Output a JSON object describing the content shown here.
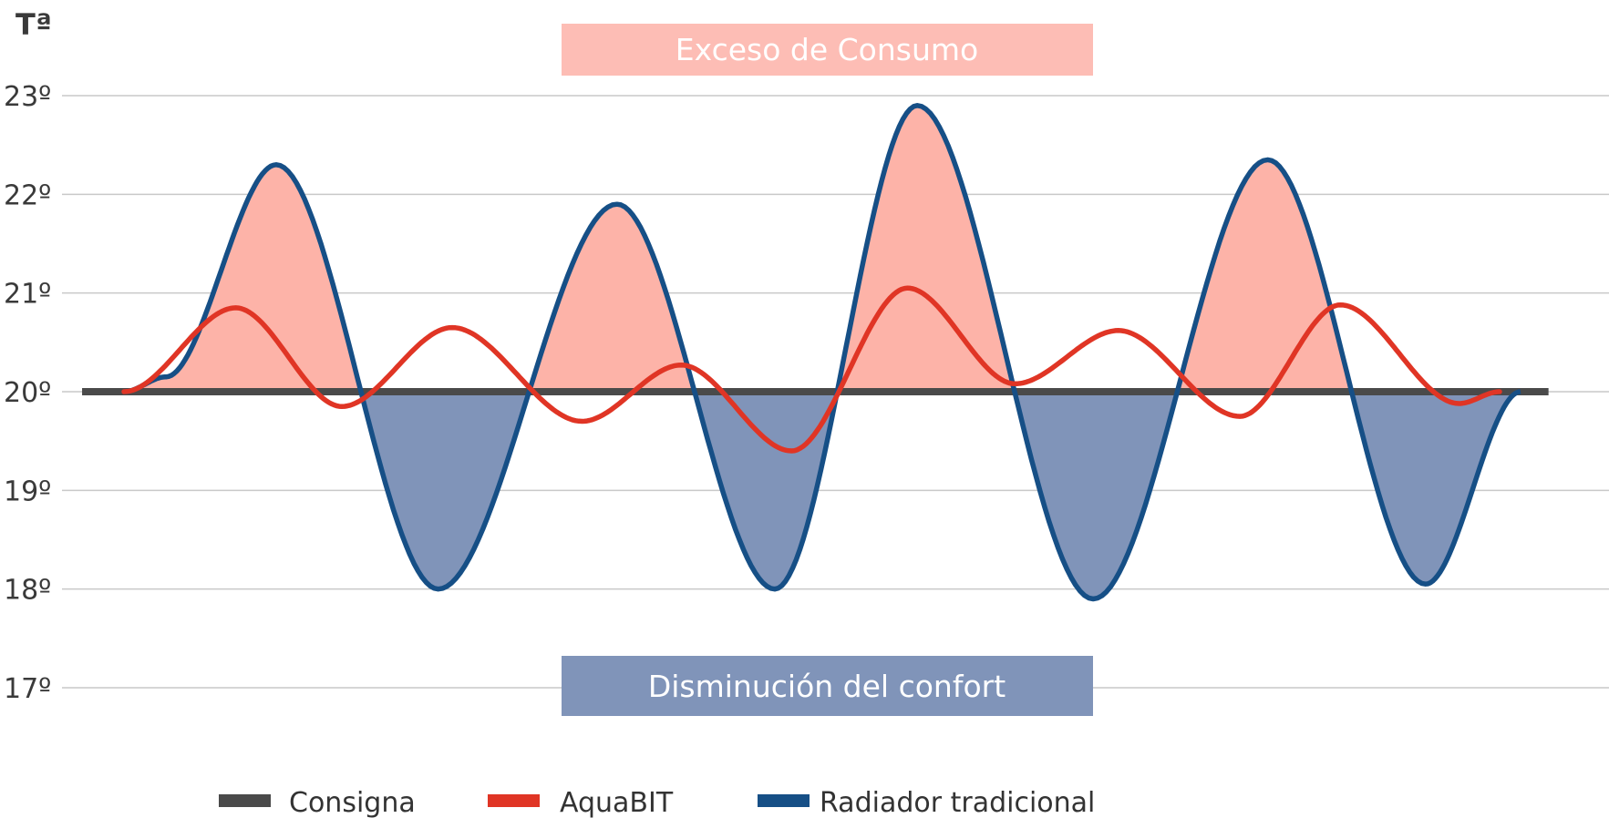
{
  "chart_data": {
    "type": "line",
    "title": "",
    "ylabel": "Tª",
    "xlabel": "",
    "ylim": [
      17,
      23
    ],
    "xlim": [
      0,
      100
    ],
    "yticks": [
      {
        "value": 23,
        "label": "23º"
      },
      {
        "value": 22,
        "label": "22º"
      },
      {
        "value": 21,
        "label": "21º"
      },
      {
        "value": 20,
        "label": "20º"
      },
      {
        "value": 19,
        "label": "19º"
      },
      {
        "value": 18,
        "label": "18º"
      },
      {
        "value": 17,
        "label": "17º"
      }
    ],
    "grid": true,
    "series": [
      {
        "name": "Consigna",
        "color": "#4a4a4a",
        "x": [
          -3,
          102
        ],
        "y": [
          20,
          20
        ]
      },
      {
        "name": "AquaBIT",
        "color": "#e03525",
        "x": [
          0,
          8,
          15.6,
          23.5,
          32.8,
          39.9,
          47.8,
          56.1,
          63.8,
          71.2,
          79.9,
          87.1,
          95.6,
          98.5
        ],
        "y": [
          20.0,
          20.85,
          19.85,
          20.65,
          19.7,
          20.27,
          19.4,
          21.05,
          20.08,
          20.62,
          19.75,
          20.88,
          19.88,
          20.0
        ]
      },
      {
        "name": "Radiador tradicional",
        "color": "#164f86",
        "x": [
          0,
          3,
          10.9,
          22.5,
          35.3,
          46.6,
          56.8,
          69.4,
          81.9,
          93.2,
          100
        ],
        "y": [
          20.0,
          20.15,
          22.3,
          18.0,
          21.9,
          18.0,
          22.9,
          17.9,
          22.35,
          18.05,
          20.0
        ]
      }
    ],
    "annotations": {
      "above": "Exceso de Consumo",
      "below": "Disminución del confort"
    },
    "fill_colors": {
      "above": "#fdb3a8",
      "below": "#8094b9"
    },
    "banner_colors": {
      "above": "#fdbdb5",
      "below": "#8094b9"
    },
    "legend_position": "bottom"
  }
}
